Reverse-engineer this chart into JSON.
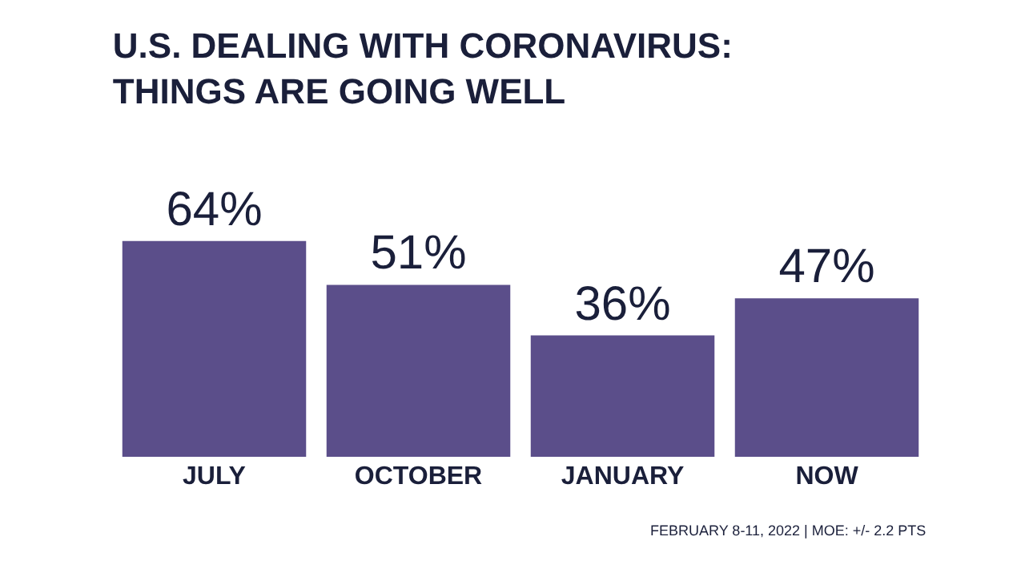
{
  "chart_data": {
    "type": "bar",
    "title": "U.S. DEALING WITH CORONAVIRUS:\nTHINGS ARE GOING WELL",
    "categories": [
      "JULY",
      "OCTOBER",
      "JANUARY",
      "NOW"
    ],
    "values": [
      64,
      51,
      36,
      47
    ],
    "value_labels": [
      "64%",
      "51%",
      "36%",
      "47%"
    ],
    "color": "#5b4e8a",
    "annotations": [
      "FEBRUARY 8-11, 2022 | MOE: +/- 2.2 PTS"
    ],
    "legend": false
  }
}
